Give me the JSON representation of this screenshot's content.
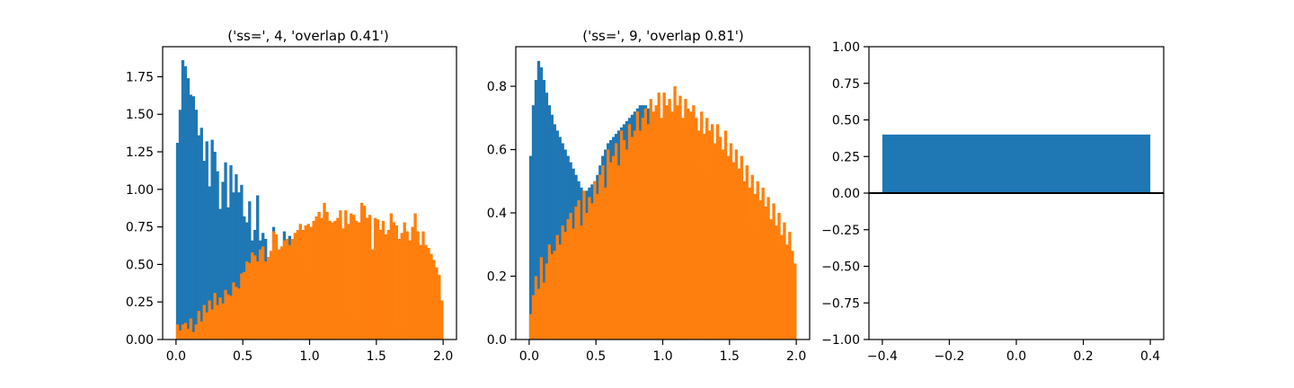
{
  "chart_data": [
    {
      "type": "histogram",
      "title": "('ss=', 4, 'overlap 0.41')",
      "xlabel": "",
      "ylabel": "",
      "xlim": [
        -0.1,
        2.1
      ],
      "ylim": [
        0,
        1.95
      ],
      "x_ticks": [
        0.0,
        0.5,
        1.0,
        1.5,
        2.0
      ],
      "x_tick_labels": [
        "0.0",
        "0.5",
        "1.0",
        "1.5",
        "2.0"
      ],
      "y_ticks": [
        0.0,
        0.25,
        0.5,
        0.75,
        1.0,
        1.25,
        1.5,
        1.75
      ],
      "y_tick_labels": [
        "0.00",
        "0.25",
        "0.50",
        "0.75",
        "1.00",
        "1.25",
        "1.50",
        "1.75"
      ],
      "bins": {
        "start": 0.0,
        "end": 2.0,
        "count": 100
      },
      "series": [
        {
          "color": "#1f77b4",
          "values": [
            1.31,
            1.53,
            1.86,
            1.82,
            1.74,
            1.63,
            1.62,
            1.53,
            1.36,
            1.41,
            1.19,
            1.32,
            1.02,
            1.33,
            1.25,
            1.12,
            0.87,
            1.05,
            1.18,
            0.88,
            1.16,
            0.98,
            1.1,
            0.98,
            1.03,
            0.82,
            0.78,
            0.92,
            0.66,
            0.73,
            0.96,
            0.66,
            0.71,
            0.67,
            0.53,
            0.56,
            0.75,
            0.43,
            0.52,
            0.43,
            0.72,
            0.56,
            0.69,
            0.48,
            0.6,
            0.63,
            0.56,
            0.44,
            0.47,
            0.48,
            0.34,
            0.3,
            0.21,
            0.3,
            0.21,
            0.31,
            0.35,
            0.19,
            0.22,
            0.34,
            0.18,
            0.24,
            0.22,
            0.3,
            0.21,
            0.16,
            0.22,
            0.12,
            0.11,
            0.21,
            0.1,
            0.13,
            0.1,
            0.16,
            0.12,
            0.09,
            0.13,
            0.12,
            0.17,
            0.08,
            0.12,
            0.1,
            0.09,
            0.09,
            0.07,
            0.11,
            0.06,
            0.08,
            0.07,
            0.07,
            0.05,
            0.05,
            0.04,
            0.05,
            0.04,
            0.03,
            0.03,
            0.02,
            0.02,
            0.02
          ]
        },
        {
          "color": "#ff7f0e",
          "values": [
            0.1,
            0.06,
            0.1,
            0.11,
            0.07,
            0.14,
            0.05,
            0.1,
            0.19,
            0.12,
            0.23,
            0.18,
            0.26,
            0.2,
            0.31,
            0.23,
            0.28,
            0.24,
            0.33,
            0.3,
            0.29,
            0.38,
            0.35,
            0.34,
            0.44,
            0.45,
            0.52,
            0.51,
            0.58,
            0.56,
            0.52,
            0.6,
            0.62,
            0.52,
            0.55,
            0.59,
            0.72,
            0.7,
            0.6,
            0.62,
            0.66,
            0.67,
            0.63,
            0.67,
            0.71,
            0.73,
            0.77,
            0.73,
            0.76,
            0.77,
            0.75,
            0.79,
            0.82,
            0.85,
            0.81,
            0.91,
            0.85,
            0.79,
            0.78,
            0.79,
            0.81,
            0.86,
            0.74,
            0.86,
            0.77,
            0.84,
            0.83,
            0.79,
            0.78,
            0.91,
            0.89,
            0.81,
            0.83,
            0.6,
            0.81,
            0.8,
            0.73,
            0.79,
            0.7,
            0.73,
            0.84,
            0.78,
            0.76,
            0.67,
            0.71,
            0.78,
            0.72,
            0.66,
            0.75,
            0.84,
            0.72,
            0.63,
            0.72,
            0.63,
            0.61,
            0.57,
            0.53,
            0.48,
            0.43,
            0.26
          ]
        }
      ]
    },
    {
      "type": "histogram",
      "title": "('ss=', 9, 'overlap 0.81')",
      "xlabel": "",
      "ylabel": "",
      "xlim": [
        -0.1,
        2.1
      ],
      "ylim": [
        0,
        0.925
      ],
      "x_ticks": [
        0.0,
        0.5,
        1.0,
        1.5,
        2.0
      ],
      "x_tick_labels": [
        "0.0",
        "0.5",
        "1.0",
        "1.5",
        "2.0"
      ],
      "y_ticks": [
        0.0,
        0.2,
        0.4,
        0.6,
        0.8
      ],
      "y_tick_labels": [
        "0.0",
        "0.2",
        "0.4",
        "0.6",
        "0.8"
      ],
      "bins": {
        "start": 0.0,
        "end": 2.0,
        "count": 100
      },
      "series": [
        {
          "color": "#1f77b4",
          "values": [
            0.58,
            0.74,
            0.82,
            0.88,
            0.86,
            0.82,
            0.78,
            0.74,
            0.71,
            0.68,
            0.66,
            0.64,
            0.62,
            0.6,
            0.58,
            0.56,
            0.54,
            0.52,
            0.5,
            0.48,
            0.47,
            0.47,
            0.48,
            0.49,
            0.5,
            0.52,
            0.55,
            0.58,
            0.6,
            0.62,
            0.63,
            0.64,
            0.65,
            0.66,
            0.67,
            0.68,
            0.69,
            0.7,
            0.71,
            0.72,
            0.73,
            0.74,
            0.74,
            0.74,
            0.73,
            0.72,
            0.71,
            0.7,
            0.69,
            0.68,
            0.67,
            0.66,
            0.65,
            0.65,
            0.64,
            0.63,
            0.62,
            0.61,
            0.6,
            0.59,
            0.58,
            0.58,
            0.57,
            0.56,
            0.55,
            0.54,
            0.53,
            0.52,
            0.51,
            0.5,
            0.49,
            0.48,
            0.48,
            0.47,
            0.46,
            0.45,
            0.44,
            0.43,
            0.42,
            0.41,
            0.4,
            0.39,
            0.38,
            0.37,
            0.36,
            0.35,
            0.34,
            0.33,
            0.32,
            0.31,
            0.3,
            0.29,
            0.28,
            0.27,
            0.26,
            0.25,
            0.24,
            0.23,
            0.22,
            0.2
          ]
        },
        {
          "color": "#ff7f0e",
          "values": [
            0.08,
            0.14,
            0.2,
            0.16,
            0.26,
            0.18,
            0.24,
            0.3,
            0.27,
            0.28,
            0.33,
            0.3,
            0.36,
            0.34,
            0.38,
            0.4,
            0.35,
            0.42,
            0.44,
            0.36,
            0.47,
            0.4,
            0.45,
            0.43,
            0.5,
            0.46,
            0.52,
            0.55,
            0.48,
            0.6,
            0.56,
            0.58,
            0.62,
            0.55,
            0.66,
            0.63,
            0.6,
            0.68,
            0.64,
            0.66,
            0.72,
            0.66,
            0.7,
            0.73,
            0.68,
            0.76,
            0.72,
            0.74,
            0.78,
            0.7,
            0.78,
            0.74,
            0.76,
            0.72,
            0.8,
            0.74,
            0.77,
            0.7,
            0.76,
            0.73,
            0.72,
            0.74,
            0.7,
            0.66,
            0.72,
            0.65,
            0.7,
            0.66,
            0.68,
            0.62,
            0.68,
            0.64,
            0.6,
            0.66,
            0.58,
            0.62,
            0.56,
            0.6,
            0.54,
            0.58,
            0.5,
            0.55,
            0.48,
            0.52,
            0.46,
            0.5,
            0.44,
            0.48,
            0.42,
            0.45,
            0.38,
            0.43,
            0.36,
            0.4,
            0.33,
            0.37,
            0.3,
            0.34,
            0.28,
            0.24
          ]
        }
      ]
    },
    {
      "type": "bar",
      "title": "",
      "xlabel": "",
      "ylabel": "",
      "xlim": [
        -0.44,
        0.44
      ],
      "ylim": [
        -1.0,
        1.0
      ],
      "x_ticks": [
        -0.4,
        -0.2,
        0.0,
        0.2,
        0.4
      ],
      "x_tick_labels": [
        "−0.4",
        "−0.2",
        "0.0",
        "0.2",
        "0.4"
      ],
      "y_ticks": [
        -1.0,
        -0.75,
        -0.5,
        -0.25,
        0.0,
        0.25,
        0.5,
        0.75,
        1.0
      ],
      "y_tick_labels": [
        "−1.00",
        "−0.75",
        "−0.50",
        "−0.25",
        "0.00",
        "0.25",
        "0.50",
        "0.75",
        "1.00"
      ],
      "bars": [
        {
          "x_start": -0.4,
          "x_end": 0.4,
          "value": 0.4,
          "color": "#1f77b4"
        }
      ],
      "hline": {
        "y": 0.0,
        "color": "#000000"
      }
    }
  ]
}
